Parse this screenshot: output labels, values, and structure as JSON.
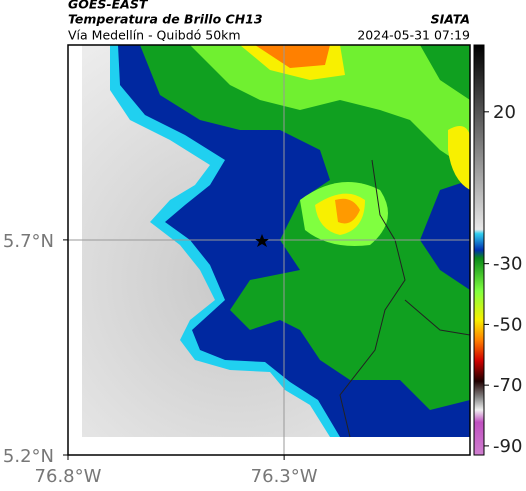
{
  "header": {
    "source": "GOES-EAST",
    "title": "Temperatura de Brillo CH13",
    "brand": "SIATA",
    "subtitle": "Vía Medellín - Quibdó 50km",
    "timestamp": "2024-05-31 07:19"
  },
  "map": {
    "xlim": [
      -76.8,
      -75.87
    ],
    "ylim": [
      5.2,
      6.153
    ],
    "xticks": [
      {
        "value": -76.8,
        "label": "76.8°W"
      },
      {
        "value": -76.3,
        "label": "76.3°W"
      }
    ],
    "yticks": [
      {
        "value": 5.2,
        "label": "5.2°N"
      },
      {
        "value": 5.7,
        "label": "5.7°N"
      }
    ],
    "grid": true
  },
  "colorbar": {
    "lim": [
      -93,
      42
    ],
    "ticks": [
      20,
      -30,
      -50,
      -70,
      -90
    ]
  }
}
